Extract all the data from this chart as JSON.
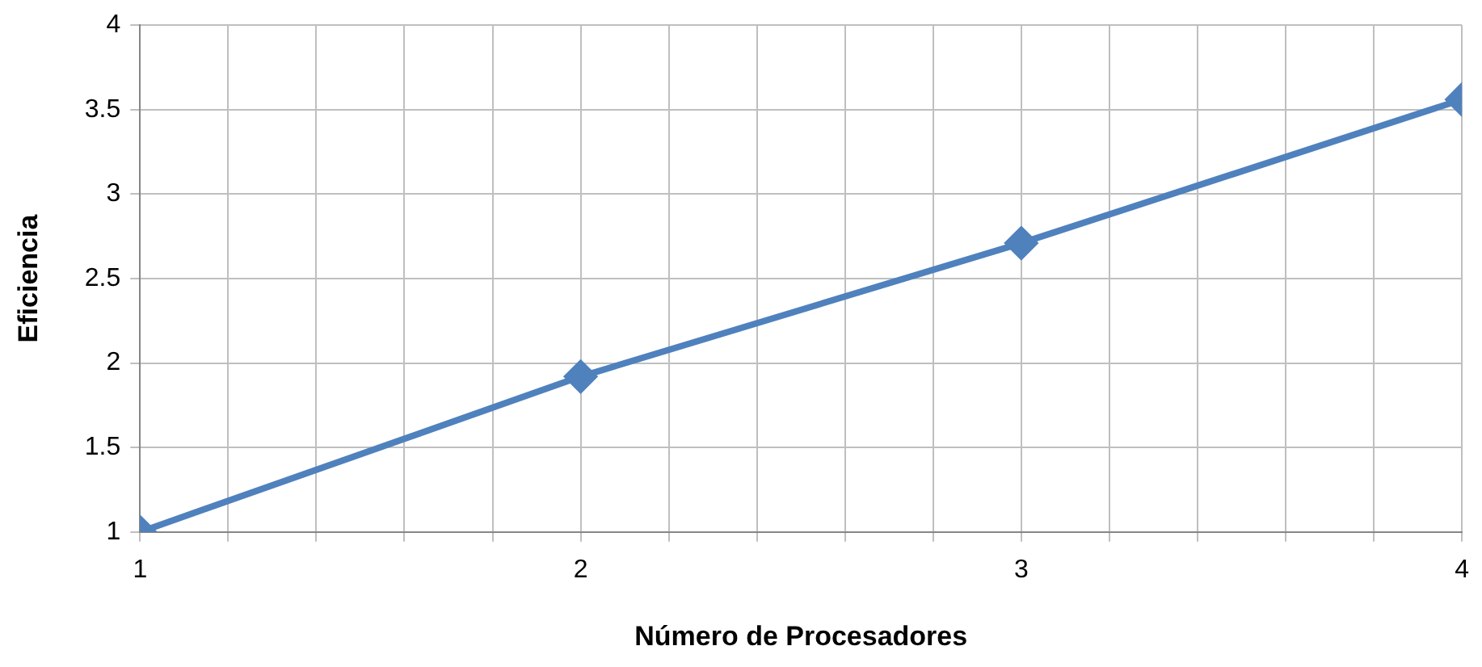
{
  "chart_data": {
    "type": "line",
    "xlabel": "Número de Procesadores",
    "ylabel": "Eficiencia",
    "x": [
      1,
      2,
      3,
      4
    ],
    "series": [
      {
        "color": "#4f81bd",
        "values": [
          1,
          1.92,
          2.71,
          3.56
        ]
      }
    ],
    "xlim": [
      1,
      4
    ],
    "xticks": [
      1,
      {
        "value": 1.2,
        "label": null
      },
      {
        "value": 1.4,
        "label": null
      },
      {
        "value": 1.6,
        "label": null
      },
      {
        "value": 1.8,
        "label": null
      },
      2,
      {
        "value": 2.2,
        "label": null
      },
      {
        "value": 2.4,
        "label": null
      },
      {
        "value": 2.6,
        "label": null
      },
      {
        "value": 2.8,
        "label": null
      },
      3,
      {
        "value": 3.2,
        "label": null
      },
      {
        "value": 3.4,
        "label": null
      },
      {
        "value": 3.6,
        "label": null
      },
      {
        "value": 3.8,
        "label": null
      },
      4
    ],
    "ylim": [
      1,
      4
    ],
    "yticks": [
      1,
      1.5,
      2,
      2.5,
      3,
      3.5,
      4
    ],
    "grid": true,
    "legend": false,
    "marker": "diamond",
    "line_style": "solid"
  }
}
